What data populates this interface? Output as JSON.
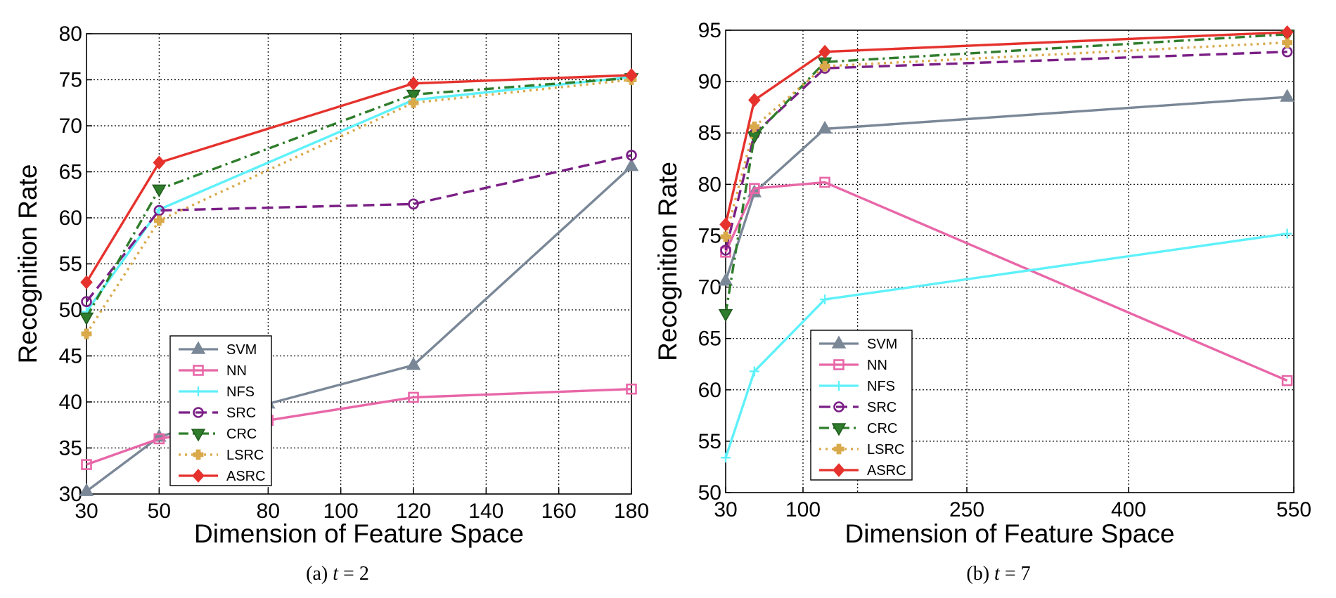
{
  "chart_data": [
    {
      "type": "line",
      "caption_prefix": "(a) ",
      "caption_var": "t",
      "caption_suffix": " = 2",
      "xlabel": "Dimension of Feature Space",
      "ylabel": "Recognition Rate",
      "xlim": [
        30,
        180
      ],
      "ylim": [
        30,
        80
      ],
      "xticks": [
        30,
        50,
        80,
        100,
        120,
        140,
        160,
        180
      ],
      "yticks": [
        30,
        35,
        40,
        45,
        50,
        55,
        60,
        65,
        70,
        75,
        80
      ],
      "grid": true,
      "legend_position": "lower-left",
      "series": [
        {
          "name": "SVM",
          "x": [
            30,
            50,
            80,
            120,
            180
          ],
          "values": [
            30.3,
            36.2,
            39.8,
            44.0,
            65.6
          ]
        },
        {
          "name": "NN",
          "x": [
            30,
            50,
            80,
            120,
            180
          ],
          "values": [
            33.2,
            36.0,
            38.0,
            40.5,
            41.4
          ]
        },
        {
          "name": "NFS",
          "x": [
            30,
            50,
            120,
            180
          ],
          "values": [
            49.8,
            60.9,
            72.8,
            75.3
          ]
        },
        {
          "name": "SRC",
          "x": [
            30,
            50,
            120,
            180
          ],
          "values": [
            50.9,
            60.8,
            61.5,
            66.8
          ]
        },
        {
          "name": "CRC",
          "x": [
            30,
            50,
            120,
            180
          ],
          "values": [
            49.2,
            63.1,
            73.4,
            75.2
          ]
        },
        {
          "name": "LSRC",
          "x": [
            30,
            50,
            120,
            180
          ],
          "values": [
            47.4,
            59.7,
            72.5,
            75.0
          ]
        },
        {
          "name": "ASRC",
          "x": [
            30,
            50,
            120,
            180
          ],
          "values": [
            53.0,
            66.0,
            74.6,
            75.5
          ]
        }
      ]
    },
    {
      "type": "line",
      "caption_prefix": "(b) ",
      "caption_var": "t",
      "caption_suffix": " = 7",
      "xlabel": "Dimension of Feature Space",
      "ylabel": "Recognition Rate",
      "xlim": [
        30,
        550
      ],
      "ylim": [
        50,
        95
      ],
      "xticks": [
        30,
        100,
        250,
        400,
        550
      ],
      "yticks": [
        50,
        55,
        60,
        65,
        70,
        75,
        80,
        85,
        90,
        95
      ],
      "extra_gridlines_x": [
        150
      ],
      "grid": true,
      "legend_position": "lower-left",
      "series": [
        {
          "name": "SVM",
          "x": [
            30,
            56,
            120,
            544
          ],
          "values": [
            70.6,
            79.2,
            85.4,
            88.5
          ]
        },
        {
          "name": "NN",
          "x": [
            30,
            56,
            120,
            544
          ],
          "values": [
            73.4,
            79.6,
            80.2,
            60.9
          ]
        },
        {
          "name": "NFS",
          "x": [
            30,
            56,
            120,
            544
          ],
          "values": [
            53.4,
            61.8,
            68.8,
            75.2
          ]
        },
        {
          "name": "SRC",
          "x": [
            30,
            56,
            120,
            544
          ],
          "values": [
            73.6,
            84.9,
            91.3,
            92.9
          ]
        },
        {
          "name": "CRC",
          "x": [
            30,
            56,
            120,
            544
          ],
          "values": [
            67.4,
            84.7,
            91.9,
            94.6
          ]
        },
        {
          "name": "LSRC",
          "x": [
            30,
            56,
            120,
            544
          ],
          "values": [
            74.9,
            85.6,
            91.5,
            93.8
          ]
        },
        {
          "name": "ASRC",
          "x": [
            30,
            56,
            120,
            544
          ],
          "values": [
            76.1,
            88.2,
            92.9,
            94.8
          ]
        }
      ]
    }
  ],
  "series_styles": {
    "SVM": {
      "color": "#7a8797",
      "dash": "none",
      "marker": "triangle-up"
    },
    "NN": {
      "color": "#e867a8",
      "dash": "none",
      "marker": "square"
    },
    "NFS": {
      "color": "#5ef1fa",
      "dash": "none",
      "marker": "plus"
    },
    "SRC": {
      "color": "#7b1f86",
      "dash": "dashed",
      "marker": "circle"
    },
    "CRC": {
      "color": "#2f7d2c",
      "dash": "dash-dot",
      "marker": "triangle-down"
    },
    "LSRC": {
      "color": "#d9a94a",
      "dash": "dotted",
      "marker": "plus-filled"
    },
    "ASRC": {
      "color": "#e5322d",
      "dash": "none",
      "marker": "diamond"
    }
  }
}
